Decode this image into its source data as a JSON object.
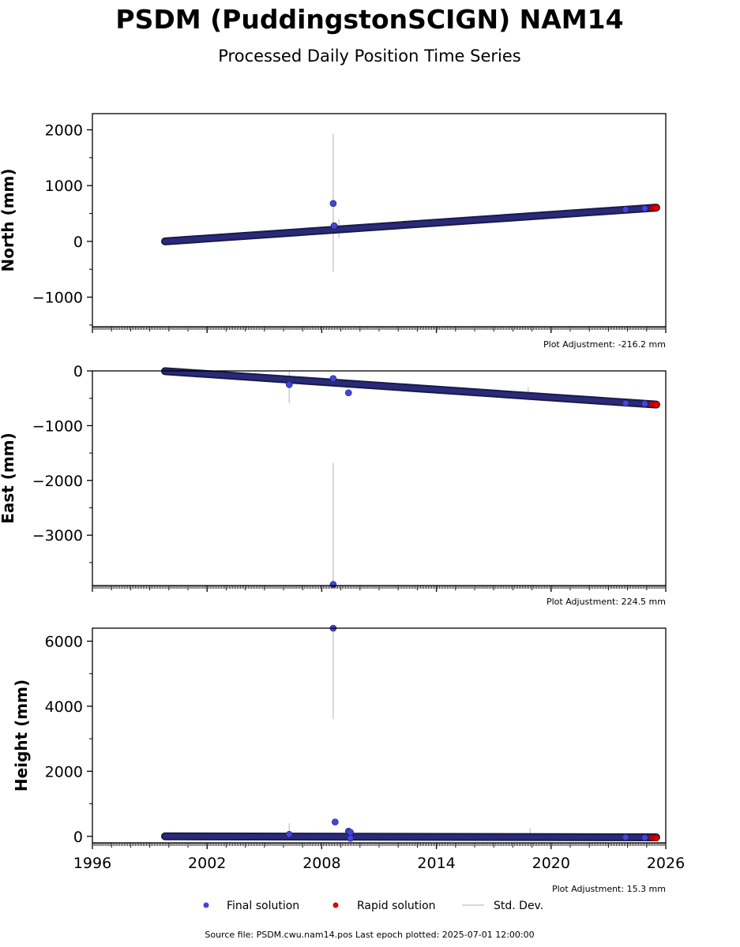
{
  "title": "PSDM (PuddingstonSCIGN) NAM14",
  "subtitle": "Processed Daily Position Time Series",
  "source_text": "Source file: PSDM.cwu.nam14.pos  Last epoch plotted: 2025-07-01 12:00:00",
  "legend": [
    {
      "label": "Final solution",
      "color": "#4444dd",
      "kind": "dot"
    },
    {
      "label": "Rapid solution",
      "color": "#dd0000",
      "kind": "dot"
    },
    {
      "label": "Std. Dev.",
      "color": "#cccccc",
      "kind": "line"
    }
  ],
  "colors": {
    "final": "#4444dd",
    "final_edge": "#1a1a4a",
    "rapid": "#dd0000",
    "stddev": "#cccccc"
  },
  "chart_data": [
    {
      "type": "scatter",
      "ylabel": "North (mm)",
      "adjustment": "Plot Adjustment: -216.2 mm",
      "xlim": [
        1996,
        2026
      ],
      "ylim": [
        -1530,
        2290
      ],
      "yticks": [
        -1000,
        0,
        1000,
        2000
      ],
      "yticklabels": [
        "−1000",
        "0",
        "1000",
        "2000"
      ],
      "xticks": [
        1996,
        2002,
        2008,
        2014,
        2020,
        2026
      ],
      "xticklabels": [
        "",
        "",
        "",
        "",
        "",
        ""
      ],
      "trend": {
        "x": [
          1999.8,
          2025.5
        ],
        "y": [
          0,
          605
        ]
      },
      "final_points": [
        {
          "x": 2008.6,
          "y": 680
        },
        {
          "x": 2008.65,
          "y": 280
        },
        {
          "x": 2023.9,
          "y": 570
        },
        {
          "x": 2024.9,
          "y": 590
        }
      ],
      "rapid_points": [
        {
          "x": 2025.3,
          "y": 600
        },
        {
          "x": 2025.4,
          "y": 601
        },
        {
          "x": 2025.5,
          "y": 602
        }
      ],
      "stddev_bars": [
        {
          "x": 2008.6,
          "y_low": -540,
          "y_high": 1930
        },
        {
          "x": 2008.9,
          "y_low": 60,
          "y_high": 400
        }
      ]
    },
    {
      "type": "scatter",
      "ylabel": "East (mm)",
      "adjustment": "Plot Adjustment: 224.5 mm",
      "xlim": [
        1996,
        2026
      ],
      "ylim": [
        -3920,
        0
      ],
      "yticks": [
        -3000,
        -2000,
        -1000,
        0
      ],
      "yticklabels": [
        "−3000",
        "−2000",
        "−1000",
        "0"
      ],
      "xticks": [
        1996,
        2002,
        2008,
        2014,
        2020,
        2026
      ],
      "xticklabels": [
        "",
        "",
        "",
        "",
        "",
        ""
      ],
      "trend": {
        "x": [
          1999.8,
          2025.5
        ],
        "y": [
          -5,
          -615
        ]
      },
      "final_points": [
        {
          "x": 2006.3,
          "y": -250
        },
        {
          "x": 2008.6,
          "y": -140
        },
        {
          "x": 2009.4,
          "y": -400
        },
        {
          "x": 2008.6,
          "y": -3900
        },
        {
          "x": 2023.9,
          "y": -590
        },
        {
          "x": 2024.9,
          "y": -600
        }
      ],
      "rapid_points": [
        {
          "x": 2025.3,
          "y": -612
        },
        {
          "x": 2025.4,
          "y": -613
        },
        {
          "x": 2025.5,
          "y": -614
        }
      ],
      "stddev_bars": [
        {
          "x": 2006.3,
          "y_low": -590,
          "y_high": 0
        },
        {
          "x": 2008.6,
          "y_low": -3920,
          "y_high": -1680
        },
        {
          "x": 2018.8,
          "y_low": -540,
          "y_high": -300
        }
      ]
    },
    {
      "type": "scatter",
      "ylabel": "Height (mm)",
      "adjustment": "Plot Adjustment: 15.3 mm",
      "xlim": [
        1996,
        2026
      ],
      "ylim": [
        -200,
        6400
      ],
      "yticks": [
        0,
        2000,
        4000,
        6000
      ],
      "yticklabels": [
        "0",
        "2000",
        "4000",
        "6000"
      ],
      "xticks": [
        1996,
        2002,
        2008,
        2014,
        2020,
        2026
      ],
      "xticklabels": [
        "1996",
        "2002",
        "2008",
        "2014",
        "2020",
        "2026"
      ],
      "trend": {
        "x": [
          1999.8,
          2025.5
        ],
        "y": [
          0,
          -30
        ]
      },
      "final_points": [
        {
          "x": 2008.6,
          "y": 6400
        },
        {
          "x": 2008.7,
          "y": 440
        },
        {
          "x": 2009.4,
          "y": 160
        },
        {
          "x": 2009.5,
          "y": 120
        },
        {
          "x": 2009.5,
          "y": -60
        },
        {
          "x": 2006.3,
          "y": 60
        },
        {
          "x": 2023.9,
          "y": -30
        },
        {
          "x": 2024.9,
          "y": -40
        }
      ],
      "rapid_points": [
        {
          "x": 2025.3,
          "y": -40
        },
        {
          "x": 2025.4,
          "y": -45
        },
        {
          "x": 2025.5,
          "y": -50
        }
      ],
      "stddev_bars": [
        {
          "x": 2008.6,
          "y_low": 3600,
          "y_high": 6400
        },
        {
          "x": 2006.3,
          "y_low": -100,
          "y_high": 400
        },
        {
          "x": 2018.9,
          "y_low": -100,
          "y_high": 250
        }
      ]
    }
  ]
}
